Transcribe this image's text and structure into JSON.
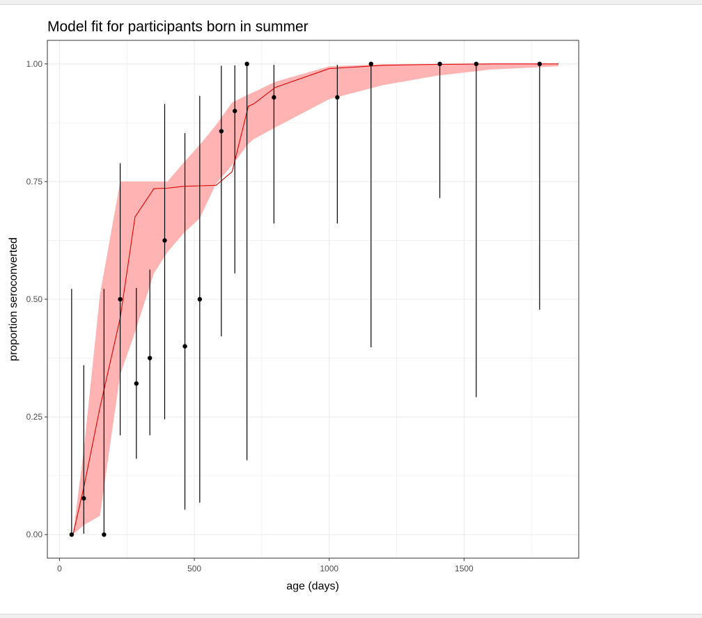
{
  "chart_data": {
    "type": "scatter",
    "title": "Model fit for participants born in summer",
    "xlabel": "age (days)",
    "ylabel": "proportion seroconverted",
    "xlim": [
      -45,
      1925
    ],
    "ylim": [
      -0.05,
      1.05
    ],
    "x_ticks": [
      0,
      500,
      1000,
      1500
    ],
    "x_tick_labels": [
      "0",
      "500",
      "1000",
      "1500"
    ],
    "y_ticks": [
      0,
      0.25,
      0.5,
      0.75,
      1
    ],
    "y_tick_labels": [
      "0.00",
      "0.25",
      "0.50",
      "0.75",
      "1.00"
    ],
    "grid": true,
    "theme": "bw",
    "colors": {
      "ribbon": "#ffb3b3",
      "fit_line": "#e00000",
      "points": "#000000",
      "error_bars": "#000000",
      "grid": "#ebebeb",
      "panel_border": "#333333"
    },
    "observed": [
      {
        "x": 45,
        "y": 0.0,
        "lower": 0.0,
        "upper": 0.522
      },
      {
        "x": 90,
        "y": 0.077,
        "lower": 0.002,
        "upper": 0.36
      },
      {
        "x": 165,
        "y": 0.0,
        "lower": 0.0,
        "upper": 0.522
      },
      {
        "x": 225,
        "y": 0.5,
        "lower": 0.211,
        "upper": 0.789
      },
      {
        "x": 285,
        "y": 0.321,
        "lower": 0.161,
        "upper": 0.524
      },
      {
        "x": 335,
        "y": 0.375,
        "lower": 0.211,
        "upper": 0.563
      },
      {
        "x": 390,
        "y": 0.625,
        "lower": 0.245,
        "upper": 0.915
      },
      {
        "x": 465,
        "y": 0.4,
        "lower": 0.053,
        "upper": 0.853
      },
      {
        "x": 520,
        "y": 0.5,
        "lower": 0.068,
        "upper": 0.932
      },
      {
        "x": 600,
        "y": 0.857,
        "lower": 0.421,
        "upper": 0.996
      },
      {
        "x": 650,
        "y": 0.9,
        "lower": 0.555,
        "upper": 0.997
      },
      {
        "x": 695,
        "y": 1.0,
        "lower": 0.158,
        "upper": 1.0
      },
      {
        "x": 795,
        "y": 0.929,
        "lower": 0.661,
        "upper": 0.998
      },
      {
        "x": 1030,
        "y": 0.929,
        "lower": 0.661,
        "upper": 0.998
      },
      {
        "x": 1155,
        "y": 1.0,
        "lower": 0.398,
        "upper": 1.0
      },
      {
        "x": 1410,
        "y": 1.0,
        "lower": 0.715,
        "upper": 1.0
      },
      {
        "x": 1545,
        "y": 1.0,
        "lower": 0.292,
        "upper": 1.0
      },
      {
        "x": 1780,
        "y": 1.0,
        "lower": 0.478,
        "upper": 1.0
      }
    ],
    "fit": {
      "x": [
        50,
        90,
        150,
        225,
        280,
        350,
        400,
        460,
        520,
        580,
        640,
        700,
        720,
        800,
        1000,
        1200,
        1400,
        1600,
        1850
      ],
      "mid": [
        0.0,
        0.1,
        0.27,
        0.46,
        0.675,
        0.735,
        0.736,
        0.74,
        0.741,
        0.742,
        0.771,
        0.91,
        0.915,
        0.95,
        0.99,
        0.997,
        0.999,
        1.0,
        1.0
      ],
      "lower": [
        0.0,
        0.02,
        0.04,
        0.34,
        0.43,
        0.555,
        0.6,
        0.64,
        0.672,
        0.745,
        0.785,
        0.83,
        0.84,
        0.865,
        0.925,
        0.955,
        0.975,
        0.988,
        0.995
      ],
      "upper": [
        0.0,
        0.18,
        0.51,
        0.75,
        0.75,
        0.75,
        0.75,
        0.79,
        0.828,
        0.87,
        0.918,
        0.935,
        0.94,
        0.962,
        0.995,
        0.999,
        1.0,
        1.0,
        1.0
      ]
    }
  }
}
